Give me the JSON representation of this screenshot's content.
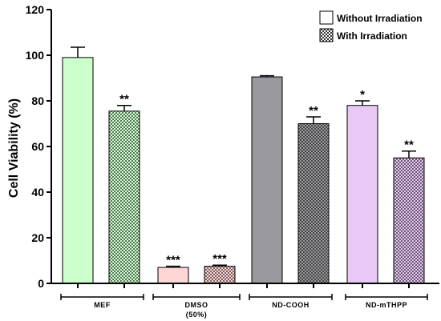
{
  "chart_data": {
    "type": "bar",
    "title": "",
    "xlabel": "",
    "ylabel": "Cell Viability (%)",
    "ylim": [
      0,
      120
    ],
    "yticks": [
      0,
      20,
      40,
      60,
      80,
      100,
      120
    ],
    "grid": false,
    "legend_position": "top-right",
    "categories": [
      {
        "label": "MEF",
        "sublabel": ""
      },
      {
        "label": "DMSO",
        "sublabel": "(50%)"
      },
      {
        "label": "ND-COOH",
        "sublabel": ""
      },
      {
        "label": "ND-mTHPP",
        "sublabel": ""
      }
    ],
    "series": [
      {
        "name": "Without Irradiation",
        "pattern": "solid",
        "values": [
          99,
          7,
          90.5,
          78
        ],
        "errors": [
          4.5,
          0.5,
          0.5,
          2
        ],
        "significance": [
          "",
          "***",
          "",
          "*"
        ]
      },
      {
        "name": "With Irradiation",
        "pattern": "checkered",
        "values": [
          75.5,
          7.5,
          70,
          55
        ],
        "errors": [
          2.5,
          0.5,
          3,
          3
        ],
        "significance": [
          "**",
          "***",
          "**",
          "**"
        ]
      }
    ],
    "colors": {
      "MEF": "#ccffcc",
      "DMSO": "#ffd6d6",
      "ND-COOH": "#9a9a9e",
      "ND-mTHPP": "#e8c8f4"
    }
  }
}
